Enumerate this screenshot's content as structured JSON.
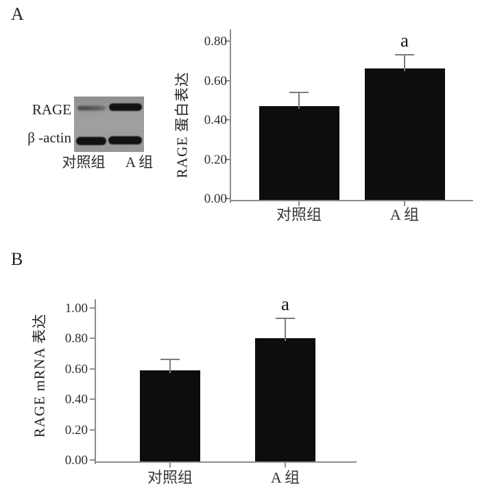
{
  "panels": [
    {
      "label": "A"
    },
    {
      "label": "B"
    }
  ],
  "blot": {
    "row_labels": [
      "RAGE",
      "β -actin"
    ],
    "lane_labels": [
      "对照组",
      "A 组"
    ]
  },
  "colors": {
    "bar": "#0d0d0d",
    "error": "#7a7a7a",
    "axis": "#8c8c8c"
  },
  "chart_data": [
    {
      "type": "bar",
      "panel": "A",
      "title": "",
      "xlabel": "",
      "ylabel": "RAGE 蛋白表达",
      "categories": [
        "对照组",
        "A 组"
      ],
      "values": [
        0.47,
        0.66
      ],
      "errors": [
        0.07,
        0.07
      ],
      "annotations": [
        "",
        "a"
      ],
      "yticks": [
        0,
        0.2,
        0.4,
        0.6,
        0.8
      ],
      "ytick_labels": [
        "0.00",
        "0.20",
        "0.40",
        "0.60",
        "0.80"
      ],
      "ylim": [
        0,
        0.87
      ],
      "grid": false,
      "legend": null
    },
    {
      "type": "bar",
      "panel": "B",
      "title": "",
      "xlabel": "",
      "ylabel": "RAGE mRNA 表达",
      "categories": [
        "对照组",
        "A 组"
      ],
      "values": [
        0.59,
        0.8
      ],
      "errors": [
        0.07,
        0.13
      ],
      "annotations": [
        "",
        "a"
      ],
      "yticks": [
        0,
        0.2,
        0.4,
        0.6,
        0.8,
        1.0
      ],
      "ytick_labels": [
        "0.00",
        "0.20",
        "0.40",
        "0.60",
        "0.80",
        "1.00"
      ],
      "ylim": [
        0,
        1.07
      ],
      "grid": false,
      "legend": null
    }
  ]
}
